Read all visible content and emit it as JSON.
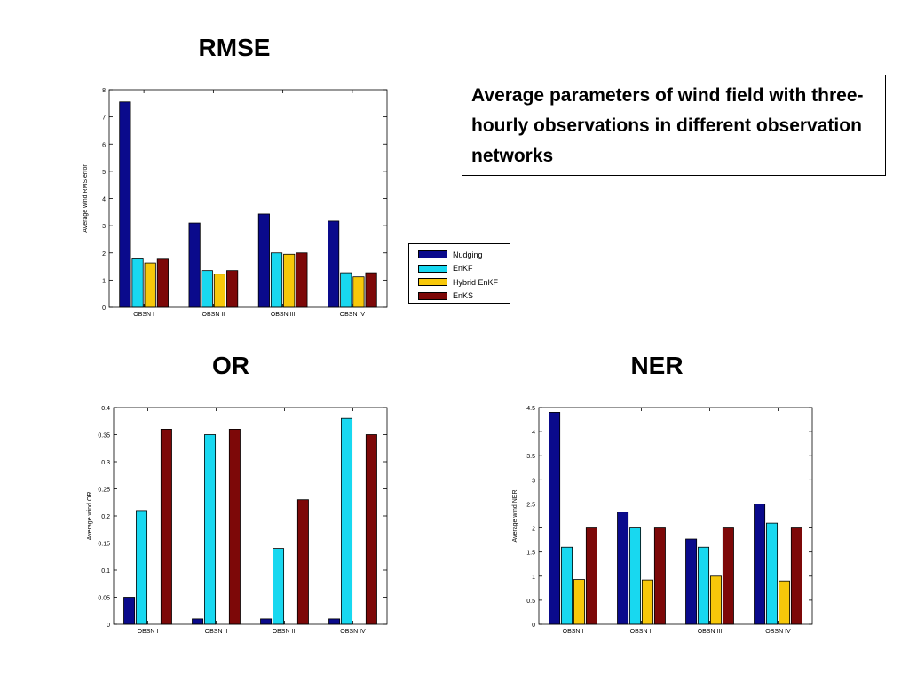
{
  "headings": {
    "rmse": "RMSE",
    "or": "OR",
    "ner": "NER"
  },
  "note": "Average parameters of wind field with three-hourly observations in different observation networks",
  "colors": {
    "Nudging": "#0a0a8c",
    "EnKF": "#18d8f0",
    "Hybrid EnKF": "#f7c80a",
    "EnKS": "#7d0808"
  },
  "legend": [
    "Nudging",
    "EnKF",
    "Hybrid EnKF",
    "EnKS"
  ],
  "chart_data": [
    {
      "type": "bar",
      "categories": [
        "OBSN I",
        "OBSN II",
        "OBSN III",
        "OBSN IV"
      ],
      "ylabel": "Average wind RMS error",
      "xlabel": "",
      "ylim": [
        0,
        8
      ],
      "yticks": [
        "0",
        "1",
        "2",
        "3",
        "4",
        "5",
        "6",
        "7",
        "8"
      ],
      "series": [
        {
          "name": "Nudging",
          "values": [
            7.55,
            3.1,
            3.43,
            3.17
          ]
        },
        {
          "name": "EnKF",
          "values": [
            1.78,
            1.35,
            2.0,
            1.27
          ]
        },
        {
          "name": "Hybrid EnKF",
          "values": [
            1.63,
            1.22,
            1.95,
            1.12
          ]
        },
        {
          "name": "EnKS",
          "values": [
            1.77,
            1.35,
            2.0,
            1.27
          ]
        }
      ]
    },
    {
      "type": "bar",
      "categories": [
        "OBSN I",
        "OBSN II",
        "OBSN III",
        "OBSN IV"
      ],
      "ylabel": "Average wind OR",
      "xlabel": "",
      "ylim": [
        0,
        0.4
      ],
      "yticks": [
        "0",
        "0.05",
        "0.1",
        "0.15",
        "0.2",
        "0.25",
        "0.3",
        "0.35",
        "0.4"
      ],
      "series": [
        {
          "name": "Nudging",
          "values": [
            0.05,
            0.01,
            0.01,
            0.01
          ]
        },
        {
          "name": "EnKF",
          "values": [
            0.21,
            0.35,
            0.14,
            0.38
          ]
        },
        {
          "name": "Hybrid EnKF",
          "values": [
            0,
            0,
            0,
            0
          ]
        },
        {
          "name": "EnKS",
          "values": [
            0.36,
            0.36,
            0.23,
            0.35
          ]
        }
      ]
    },
    {
      "type": "bar",
      "categories": [
        "OBSN I",
        "OBSN II",
        "OBSN III",
        "OBSN IV"
      ],
      "ylabel": "Average wind NER",
      "xlabel": "",
      "ylim": [
        0,
        4.5
      ],
      "yticks": [
        "0",
        "0.5",
        "1",
        "1.5",
        "2",
        "2.5",
        "3",
        "3.5",
        "4",
        "4.5"
      ],
      "series": [
        {
          "name": "Nudging",
          "values": [
            4.4,
            2.33,
            1.77,
            2.5
          ]
        },
        {
          "name": "EnKF",
          "values": [
            1.6,
            2.0,
            1.6,
            2.1
          ]
        },
        {
          "name": "Hybrid EnKF",
          "values": [
            0.93,
            0.92,
            1.0,
            0.9
          ]
        },
        {
          "name": "EnKS",
          "values": [
            2.0,
            2.0,
            2.0,
            2.0
          ]
        }
      ]
    }
  ]
}
